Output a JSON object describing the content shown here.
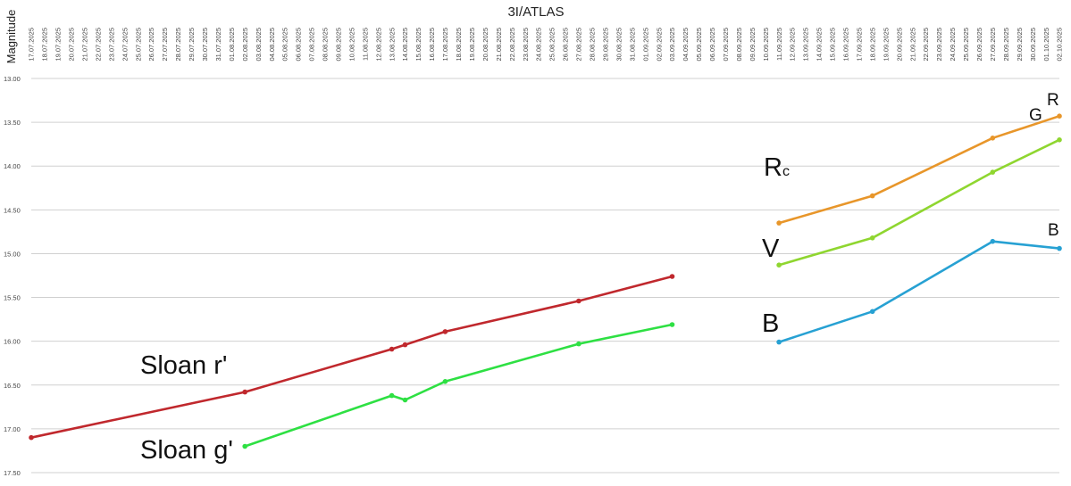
{
  "chart_data": {
    "type": "line",
    "title": "3I/ATLAS",
    "ylabel": "Magnitude",
    "ylim": [
      13.0,
      17.5
    ],
    "y_inverted": true,
    "y_ticks": [
      "13.00",
      "13.50",
      "14.00",
      "14.50",
      "15.00",
      "15.50",
      "16.00",
      "16.50",
      "17.00",
      "17.50"
    ],
    "grid": "horizontal",
    "x_start": "2025-07-17",
    "x_end": "2025-10-02",
    "x_tick_labels": [
      "17.07.2025",
      "18.07.2025",
      "19.07.2025",
      "20.07.2025",
      "21.07.2025",
      "22.07.2025",
      "23.07.2025",
      "24.07.2025",
      "25.07.2025",
      "26.07.2025",
      "27.07.2025",
      "28.07.2025",
      "29.07.2025",
      "30.07.2025",
      "31.07.2025",
      "01.08.2025",
      "02.08.2025",
      "03.08.2025",
      "04.08.2025",
      "05.08.2025",
      "06.08.2025",
      "07.08.2025",
      "08.08.2025",
      "09.08.2025",
      "10.08.2025",
      "11.08.2025",
      "12.08.2025",
      "13.08.2025",
      "14.08.2025",
      "15.08.2025",
      "16.08.2025",
      "17.08.2025",
      "18.08.2025",
      "19.08.2025",
      "20.08.2025",
      "21.08.2025",
      "22.08.2025",
      "23.08.2025",
      "24.08.2025",
      "25.08.2025",
      "26.08.2025",
      "27.08.2025",
      "28.08.2025",
      "29.08.2025",
      "30.08.2025",
      "31.08.2025",
      "01.09.2025",
      "02.09.2025",
      "03.09.2025",
      "04.09.2025",
      "05.09.2025",
      "06.09.2025",
      "07.09.2025",
      "08.09.2025",
      "09.09.2025",
      "10.09.2025",
      "11.09.2025",
      "12.09.2025",
      "13.09.2025",
      "14.09.2025",
      "15.09.2025",
      "16.09.2025",
      "17.09.2025",
      "18.09.2025",
      "19.09.2025",
      "20.09.2025",
      "21.09.2025",
      "22.09.2025",
      "23.09.2025",
      "24.09.2025",
      "25.09.2025",
      "26.09.2025",
      "27.09.2025",
      "28.09.2025",
      "29.09.2025",
      "30.09.2025",
      "01.10.2025",
      "02.10.2025"
    ],
    "series": [
      {
        "name": "Sloan r'",
        "color": "#c0282d",
        "points": [
          {
            "x": "2025-07-17",
            "y": 17.1
          },
          {
            "x": "2025-08-02",
            "y": 16.58
          },
          {
            "x": "2025-08-13",
            "y": 16.09
          },
          {
            "x": "2025-08-14",
            "y": 16.04
          },
          {
            "x": "2025-08-17",
            "y": 15.89
          },
          {
            "x": "2025-08-27",
            "y": 15.54
          },
          {
            "x": "2025-09-03",
            "y": 15.26
          }
        ]
      },
      {
        "name": "Sloan g'",
        "color": "#2ee043",
        "points": [
          {
            "x": "2025-08-02",
            "y": 17.2
          },
          {
            "x": "2025-08-13",
            "y": 16.62
          },
          {
            "x": "2025-08-14",
            "y": 16.67
          },
          {
            "x": "2025-08-17",
            "y": 16.46
          },
          {
            "x": "2025-08-27",
            "y": 16.03
          },
          {
            "x": "2025-09-03",
            "y": 15.81
          }
        ]
      },
      {
        "name": "Rc",
        "color": "#e8962a",
        "points": [
          {
            "x": "2025-09-11",
            "y": 14.65
          },
          {
            "x": "2025-09-18",
            "y": 14.34
          },
          {
            "x": "2025-09-27",
            "y": 13.68
          },
          {
            "x": "2025-10-02",
            "y": 13.43
          }
        ]
      },
      {
        "name": "V",
        "color": "#8fd630",
        "points": [
          {
            "x": "2025-09-11",
            "y": 15.13
          },
          {
            "x": "2025-09-18",
            "y": 14.82
          },
          {
            "x": "2025-09-27",
            "y": 14.07
          },
          {
            "x": "2025-10-02",
            "y": 13.7
          }
        ]
      },
      {
        "name": "B",
        "color": "#27a1d3",
        "points": [
          {
            "x": "2025-09-11",
            "y": 16.01
          },
          {
            "x": "2025-09-18",
            "y": 15.66
          },
          {
            "x": "2025-09-27",
            "y": 14.86
          },
          {
            "x": "2025-10-02",
            "y": 14.94
          }
        ]
      }
    ],
    "annotations": {
      "sloan_r": "Sloan r'",
      "sloan_g": "Sloan g'",
      "rc_main": "R",
      "rc_sub": "c",
      "v": "V",
      "b": "B",
      "r_small": "R",
      "g_small": "G",
      "b_small": "B"
    }
  }
}
